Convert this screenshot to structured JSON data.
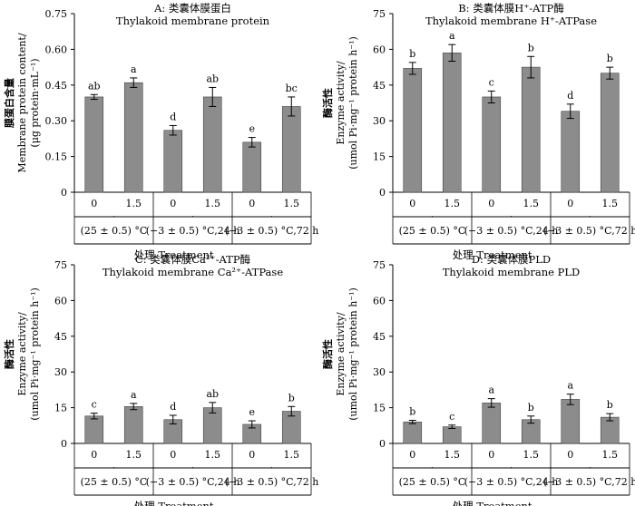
{
  "chart_data": [
    {
      "type": "bar",
      "title": "A: 类囊体膜蛋白",
      "subtitle": "Thylakoid membrane protein",
      "ylabel": [
        "膜蛋白含量",
        "Membrane protein content/",
        "(μg protein·mL⁻¹)"
      ],
      "ylim": [
        0,
        0.75
      ],
      "yticks": [
        "0",
        "0.15",
        "0.30",
        "0.45",
        "0.60",
        "0.75"
      ],
      "categories": [
        "0",
        "1.5",
        "0",
        "1.5",
        "0",
        "1.5"
      ],
      "values": [
        0.4,
        0.46,
        0.26,
        0.4,
        0.21,
        0.36
      ],
      "errors": [
        0.01,
        0.02,
        0.02,
        0.04,
        0.02,
        0.04
      ],
      "letters": [
        "ab",
        "a",
        "d",
        "ab",
        "e",
        "bc"
      ],
      "groups": [
        "(25 ± 0.5) °C",
        "(−3 ± 0.5) °C,24 h",
        "(−3 ± 0.5) °C,72 h"
      ],
      "xlabel": "处理 Treatment"
    },
    {
      "type": "bar",
      "title": "B: 类囊体膜H⁺-ATP酶",
      "subtitle": "Thylakoid membrane H⁺-ATPase",
      "ylabel": [
        "酶活性",
        "Enzyme activity/",
        "(umol Pi·mg⁻¹ protein h⁻¹)"
      ],
      "ylim": [
        0,
        75
      ],
      "yticks": [
        "0",
        "15",
        "30",
        "45",
        "60",
        "75"
      ],
      "categories": [
        "0",
        "1.5",
        "0",
        "1.5",
        "0",
        "1.5"
      ],
      "values": [
        52,
        58.5,
        40,
        52.5,
        34,
        50
      ],
      "errors": [
        2.5,
        3.5,
        2.5,
        4.5,
        3,
        2.5
      ],
      "letters": [
        "b",
        "a",
        "c",
        "b",
        "d",
        "b"
      ],
      "groups": [
        "(25 ± 0.5) °C",
        "(−3 ± 0.5) °C,24 h",
        "(−3 ± 0.5) °C,72 h"
      ],
      "xlabel": "处理 Treatment"
    },
    {
      "type": "bar",
      "title": "C: 类囊体膜Ca²⁺-ATP酶",
      "subtitle": "Thylakoid membrane Ca²⁺-ATPase",
      "ylabel": [
        "酶活性",
        "Enzyme activity/",
        "(umol Pi·mg⁻¹ protein h⁻¹)"
      ],
      "ylim": [
        0,
        75
      ],
      "yticks": [
        "0",
        "15",
        "30",
        "45",
        "60",
        "75"
      ],
      "categories": [
        "0",
        "1.5",
        "0",
        "1.5",
        "0",
        "1.5"
      ],
      "values": [
        11.5,
        15.5,
        10,
        15,
        8,
        13.5
      ],
      "errors": [
        1.2,
        1.3,
        1.8,
        2.2,
        1.5,
        2
      ],
      "letters": [
        "c",
        "a",
        "d",
        "ab",
        "e",
        "b"
      ],
      "groups": [
        "(25 ± 0.5) °C",
        "(−3 ± 0.5) °C,24 h",
        "(−3 ± 0.5) °C,72 h"
      ],
      "xlabel": "处理 Treatment"
    },
    {
      "type": "bar",
      "title": "D: 类囊体膜PLD",
      "subtitle": "Thylakoid membrane PLD",
      "ylabel": [
        "酶活性",
        "Enzyme activity/",
        "(umol Pi·mg⁻¹ protein h⁻¹)"
      ],
      "ylim": [
        0,
        75
      ],
      "yticks": [
        "0",
        "15",
        "30",
        "45",
        "60",
        "75"
      ],
      "categories": [
        "0",
        "1.5",
        "0",
        "1.5",
        "0",
        "1.5"
      ],
      "values": [
        9,
        7,
        17,
        10,
        18.5,
        11
      ],
      "errors": [
        0.7,
        0.7,
        1.8,
        1.5,
        2.2,
        1.5
      ],
      "letters": [
        "b",
        "c",
        "a",
        "b",
        "a",
        "b"
      ],
      "groups": [
        "(25 ± 0.5) °C",
        "(−3 ± 0.5) °C,24 h",
        "(−3 ± 0.5) °C,72 h"
      ],
      "xlabel": "处理 Treatment"
    }
  ],
  "style": {
    "bar_color": "#8c8c8c",
    "axis_color": "#000000"
  }
}
